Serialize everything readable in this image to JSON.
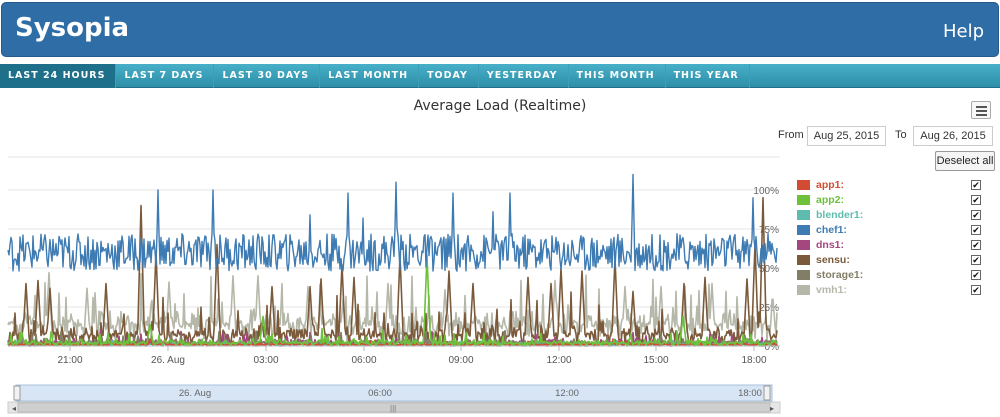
{
  "header": {
    "brand": "Sysopia",
    "help": "Help"
  },
  "tabs": [
    {
      "label": "LAST 24 HOURS",
      "active": true
    },
    {
      "label": "LAST 7 DAYS",
      "active": false
    },
    {
      "label": "LAST 30 DAYS",
      "active": false
    },
    {
      "label": "LAST MONTH",
      "active": false
    },
    {
      "label": "TODAY",
      "active": false
    },
    {
      "label": "YESTERDAY",
      "active": false
    },
    {
      "label": "THIS MONTH",
      "active": false
    },
    {
      "label": "THIS YEAR",
      "active": false
    }
  ],
  "range": {
    "from_label": "From",
    "from_value": "Aug 25, 2015",
    "to_label": "To",
    "to_value": "Aug 26, 2015"
  },
  "deselect_label": "Deselect all",
  "icons": {
    "menu": "hamburger-menu-icon",
    "checkbox": "checkmark-icon"
  },
  "chart_data": {
    "type": "line",
    "title": "Average Load (Realtime)",
    "y_ticks": [
      "0%",
      "25%",
      "50%",
      "75%",
      "100%"
    ],
    "ylim": [
      0,
      100
    ],
    "x_ticks": [
      "21:00",
      "26. Aug",
      "03:00",
      "06:00",
      "09:00",
      "12:00",
      "15:00",
      "18:00"
    ],
    "navigator_ticks": [
      "26. Aug",
      "06:00",
      "12:00",
      "18:00"
    ],
    "grid": true,
    "legend_position": "right",
    "series": [
      {
        "name": "app1:",
        "color": "#d24b33",
        "checked": true,
        "base": 1,
        "spikes": [],
        "noise": 1
      },
      {
        "name": "app2:",
        "color": "#6cc23a",
        "checked": true,
        "base": 2,
        "spikes": [
          [
            255,
            19
          ],
          [
            419,
            58
          ],
          [
            420,
            24
          ],
          [
            675,
            19
          ],
          [
            142,
            14
          ]
        ],
        "noise": 3
      },
      {
        "name": "blender1:",
        "color": "#5ebcae",
        "checked": true,
        "base": 1,
        "spikes": [],
        "noise": 1
      },
      {
        "name": "chef1:",
        "color": "#3e7bb3",
        "checked": true,
        "base": 60,
        "spikes": [
          [
            150,
            100
          ],
          [
            205,
            100
          ],
          [
            302,
            84
          ],
          [
            340,
            98
          ],
          [
            355,
            82
          ],
          [
            388,
            105
          ],
          [
            445,
            98
          ],
          [
            485,
            86
          ],
          [
            502,
            98
          ],
          [
            625,
            110
          ],
          [
            745,
            95
          ]
        ],
        "noise": 12
      },
      {
        "name": "dns1:",
        "color": "#a4467f",
        "checked": true,
        "base": 2,
        "spikes": [],
        "noise": 3
      },
      {
        "name": "sensu:",
        "color": "#7b5a3b",
        "checked": true,
        "base": 7,
        "spikes": [
          [
            18,
            40
          ],
          [
            30,
            42
          ],
          [
            42,
            37
          ],
          [
            98,
            40
          ],
          [
            133,
            90
          ],
          [
            148,
            60
          ],
          [
            209,
            65
          ],
          [
            264,
            38
          ],
          [
            302,
            38
          ],
          [
            313,
            43
          ],
          [
            334,
            52
          ],
          [
            346,
            44
          ],
          [
            392,
            58
          ],
          [
            441,
            48
          ],
          [
            465,
            40
          ],
          [
            520,
            44
          ],
          [
            543,
            40
          ],
          [
            553,
            50
          ],
          [
            574,
            48
          ],
          [
            607,
            56
          ],
          [
            625,
            35
          ],
          [
            676,
            40
          ],
          [
            697,
            44
          ],
          [
            739,
            43
          ],
          [
            747,
            65
          ],
          [
            755,
            95
          ]
        ],
        "noise": 10
      },
      {
        "name": "storage1:",
        "color": "#827e66",
        "checked": true,
        "base": 2,
        "spikes": [],
        "noise": 3
      },
      {
        "name": "vmh1:",
        "color": "#b5b7a8",
        "checked": true,
        "base": 14,
        "spikes": [
          [
            41,
            47
          ],
          [
            79,
            37
          ],
          [
            161,
            41
          ],
          [
            225,
            45
          ],
          [
            250,
            45
          ],
          [
            300,
            38
          ],
          [
            335,
            30
          ],
          [
            380,
            40
          ],
          [
            437,
            36
          ],
          [
            547,
            42
          ],
          [
            617,
            38
          ],
          [
            653,
            38
          ],
          [
            704,
            40
          ],
          [
            765,
            30
          ]
        ],
        "noise": 12
      }
    ]
  }
}
